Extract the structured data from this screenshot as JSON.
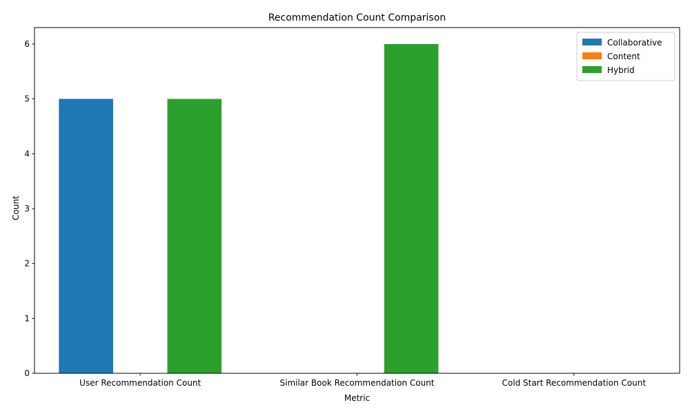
{
  "chart_data": {
    "type": "bar",
    "title": "Recommendation Count Comparison",
    "xlabel": "Metric",
    "ylabel": "Count",
    "categories": [
      "User Recommendation Count",
      "Similar Book Recommendation Count",
      "Cold Start Recommendation Count"
    ],
    "series": [
      {
        "name": "Collaborative",
        "values": [
          5,
          0,
          0
        ],
        "color": "#1f77b4"
      },
      {
        "name": "Content",
        "values": [
          0,
          0,
          0
        ],
        "color": "#ff7f0e"
      },
      {
        "name": "Hybrid",
        "values": [
          5,
          6,
          0
        ],
        "color": "#2ca02c"
      }
    ],
    "ylim": [
      0,
      6.3
    ],
    "yticks": [
      "0",
      "1",
      "2",
      "3",
      "4",
      "5",
      "6"
    ],
    "grid": false,
    "legend_position": "top-right"
  }
}
